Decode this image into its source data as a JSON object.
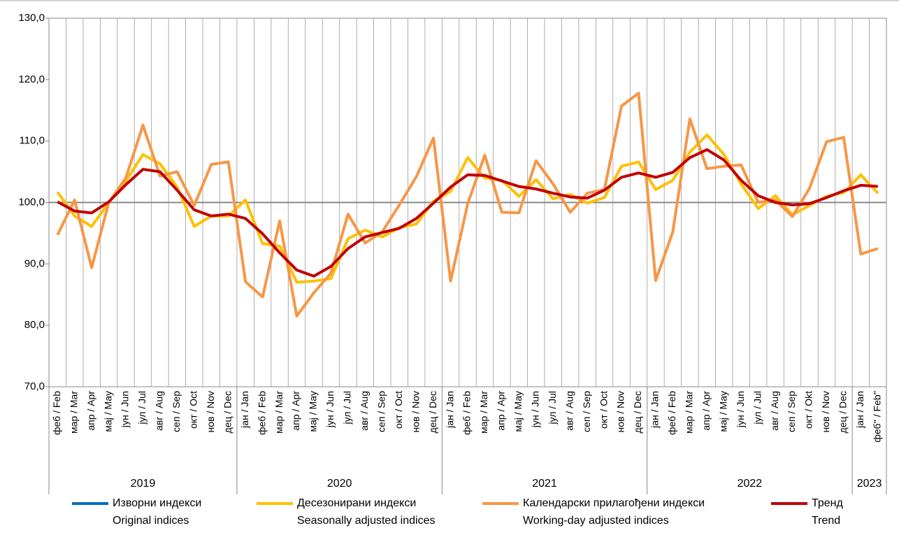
{
  "chart_data": {
    "type": "line",
    "groups": [
      {
        "label": "2019",
        "categories": [
          "феб / Feb",
          "мар / Mar",
          "апр / Apr",
          "мај / May",
          "јун / Jun",
          "јул / Jul",
          "авг / Aug",
          "сеп / Sep",
          "окт / Oct",
          "нов / Nov",
          "дец / Dec"
        ]
      },
      {
        "label": "2020",
        "categories": [
          "јан / Jan",
          "феб / Feb",
          "мар / Mar",
          "апр / Apr",
          "мај / May",
          "јун / Jun",
          "јул / Jul",
          "авг / Aug",
          "сеп / Sep",
          "окт / Oct",
          "нов / Nov",
          "дец / Dec"
        ]
      },
      {
        "label": "2021",
        "categories": [
          "јан / Jan",
          "феб / Feb",
          "мар / Mar",
          "апр / Apr",
          "мај / May",
          "јун / Jun",
          "јул / Jul",
          "авг / Aug",
          "сеп / Sep",
          "окт / Oct",
          "нов / Nov",
          "дец / Dec"
        ]
      },
      {
        "label": "2022",
        "categories": [
          "јан / Jan",
          "феб / Feb",
          "мар / Mar",
          "апр / Apr",
          "мај / May",
          "јун / Jun",
          "јул / Jul",
          "авг / Aug",
          "сеп / Sep",
          "окт / Okt",
          "нов / Nov",
          "дец / Dec"
        ]
      },
      {
        "label": "2023",
        "categories": [
          "јан / Jan",
          "феб'' / Feb''"
        ]
      }
    ],
    "ylim": [
      70,
      130
    ],
    "yticks": [
      {
        "value": 70,
        "label": "70,0"
      },
      {
        "value": 80,
        "label": "80,0"
      },
      {
        "value": 90,
        "label": "90,0"
      },
      {
        "value": 100,
        "label": "100,0"
      },
      {
        "value": 110,
        "label": "110,0"
      },
      {
        "value": 120,
        "label": "120,0"
      },
      {
        "value": 130,
        "label": "130,0"
      }
    ],
    "reference_line": 100,
    "grid": true,
    "series": [
      {
        "name": "Изворни индекси",
        "subname": "Original indices",
        "color": "#0070c0",
        "values": [
          null,
          null,
          null,
          null,
          null,
          null,
          null,
          null,
          null,
          null,
          null,
          null,
          null,
          null,
          null,
          null,
          null,
          null,
          null,
          null,
          null,
          null,
          null,
          null,
          null,
          null,
          null,
          null,
          null,
          null,
          null,
          null,
          null,
          null,
          null,
          null,
          null,
          null,
          null,
          null,
          null,
          null,
          null,
          null,
          null,
          null,
          null,
          null,
          null
        ]
      },
      {
        "name": "Десезонирани индекси",
        "subname": "Seasonally adjusted indices",
        "color": "#ffc000",
        "values": [
          101.7,
          97.8,
          96.1,
          100.0,
          103.5,
          107.8,
          106.3,
          102.5,
          96.1,
          97.8,
          97.8,
          100.4,
          93.3,
          92.9,
          87.0,
          87.2,
          87.6,
          94.1,
          95.5,
          94.4,
          95.9,
          96.5,
          100.2,
          101.8,
          107.3,
          104.0,
          103.6,
          101.0,
          103.7,
          100.6,
          101.3,
          99.9,
          100.8,
          105.9,
          106.6,
          102.1,
          103.6,
          108.2,
          111.0,
          107.8,
          103.0,
          99.0,
          101.1,
          98.0,
          99.5,
          101.0,
          101.6,
          104.5,
          101.5
        ]
      },
      {
        "name": "Календарски прилагођени индекси",
        "subname": "Working-day adjusted indices",
        "color": "#f79646",
        "values": [
          94.7,
          100.4,
          89.4,
          100.0,
          104.0,
          112.6,
          104.3,
          105.0,
          99.5,
          106.2,
          106.6,
          87.1,
          84.6,
          97.0,
          81.5,
          85.3,
          88.5,
          98.1,
          93.4,
          95.2,
          99.6,
          104.2,
          110.5,
          87.2,
          99.8,
          107.7,
          98.4,
          98.3,
          106.8,
          103.0,
          98.4,
          101.5,
          102.1,
          115.7,
          117.8,
          87.3,
          95.2,
          113.6,
          105.5,
          105.9,
          106.1,
          100.0,
          100.4,
          97.7,
          102.3,
          109.9,
          110.6,
          91.6,
          92.5
        ]
      },
      {
        "name": "Тренд",
        "subname": "Trend",
        "color": "#c00000",
        "values": [
          100.1,
          98.6,
          98.3,
          100.1,
          102.9,
          105.4,
          105.0,
          102.0,
          98.8,
          97.8,
          98.1,
          97.4,
          94.9,
          91.8,
          89.0,
          88.0,
          89.6,
          92.5,
          94.4,
          95.1,
          95.8,
          97.4,
          99.9,
          102.5,
          104.5,
          104.4,
          103.5,
          102.6,
          102.2,
          101.5,
          100.9,
          100.7,
          102.0,
          104.1,
          104.8,
          104.1,
          104.9,
          107.3,
          108.6,
          106.9,
          103.6,
          101.1,
          100.0,
          99.6,
          99.8,
          100.8,
          101.9,
          102.8,
          102.6
        ]
      }
    ]
  }
}
